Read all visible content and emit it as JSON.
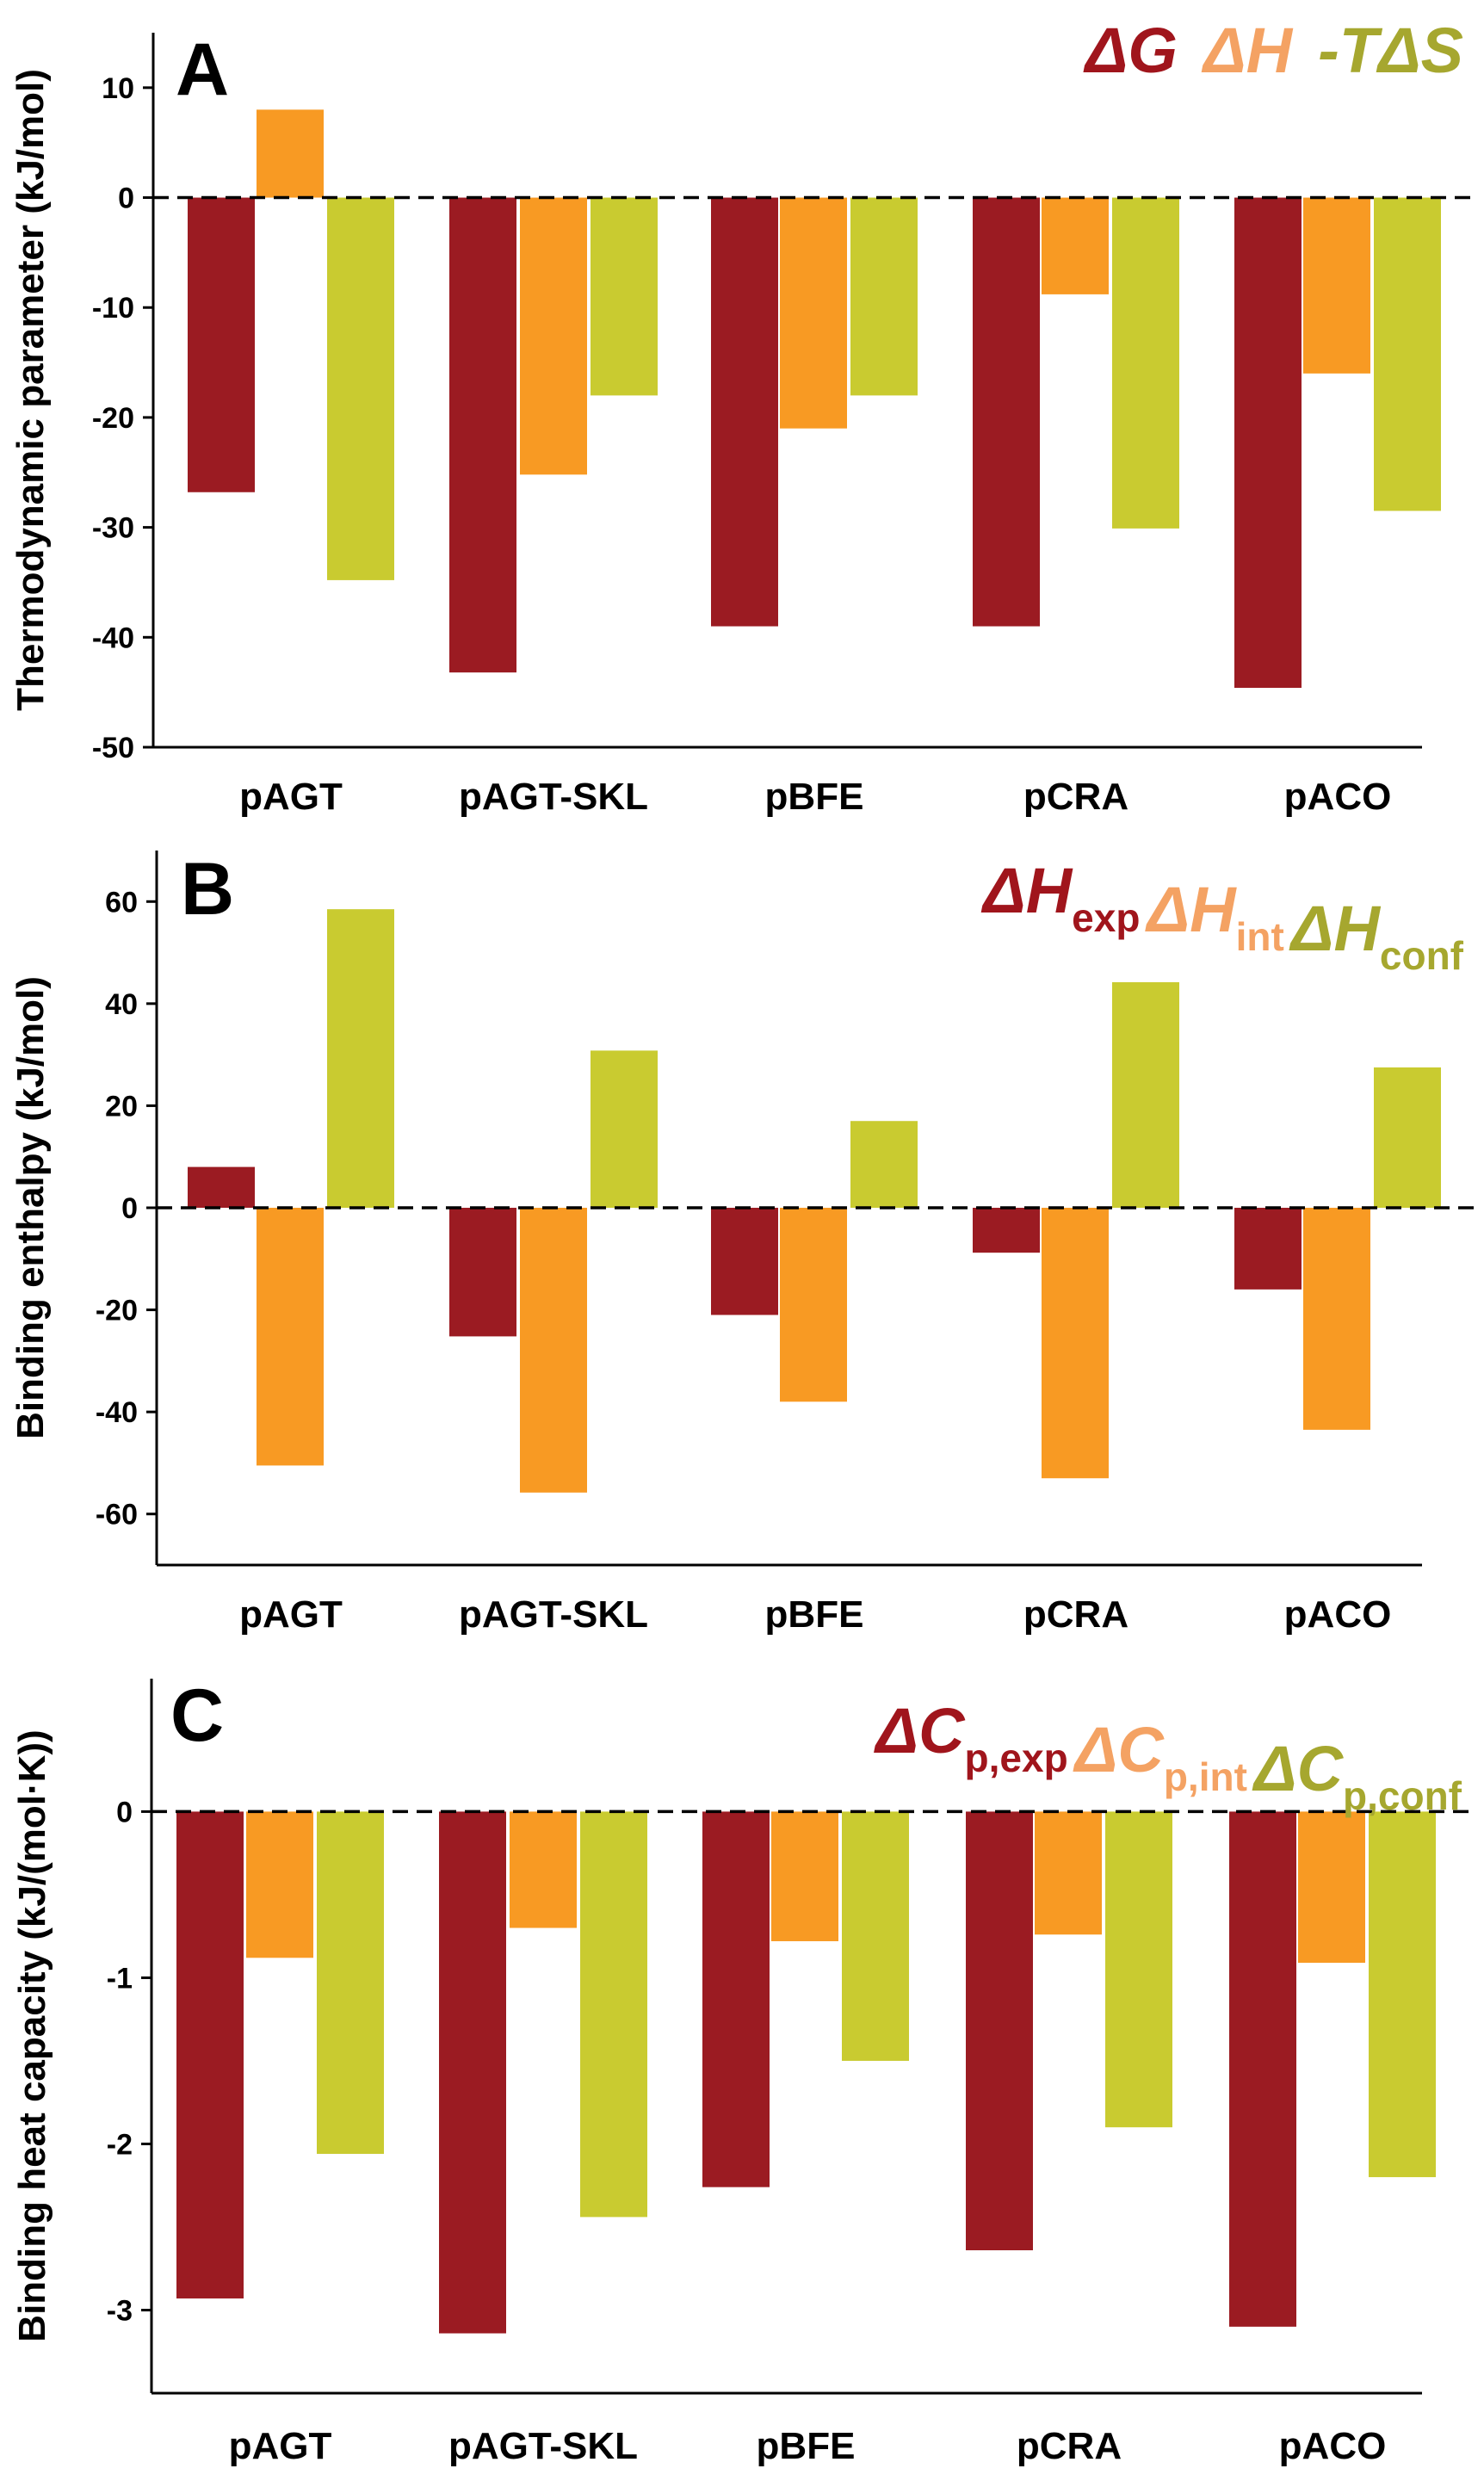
{
  "colors": {
    "series1": "#9B1B22",
    "series2": "#F89A23",
    "series3": "#C9CB30",
    "legend1": "#A0151C",
    "legend2": "#F4A263",
    "legend3": "#A6A72F"
  },
  "chart_data": [
    {
      "type": "bar",
      "panel": "A",
      "ylabel": "Thermodynamic parameter (kJ/mol)",
      "ylim": [
        -50,
        15
      ],
      "yticks": [
        10,
        0,
        -10,
        -20,
        -30,
        -40,
        -50
      ],
      "tick_labels": [
        "10",
        "0",
        "-10",
        "-20",
        "-30",
        "-40",
        "-50"
      ],
      "categories": [
        "pAGT",
        "pAGT-SKL",
        "pBFE",
        "pCRA",
        "pACO"
      ],
      "legend": [
        {
          "main": "ΔG",
          "sub": ""
        },
        {
          "main": "ΔH",
          "sub": ""
        },
        {
          "main": "-TΔS",
          "sub": ""
        }
      ],
      "series": [
        {
          "name": "ΔG",
          "values": [
            -26.8,
            -43.2,
            -39.0,
            -39.0,
            -44.6
          ]
        },
        {
          "name": "ΔH",
          "values": [
            8.0,
            -25.2,
            -21.0,
            -8.8,
            -16.0
          ]
        },
        {
          "name": "-TΔS",
          "values": [
            -34.8,
            -18.0,
            -18.0,
            -30.1,
            -28.5
          ]
        }
      ]
    },
    {
      "type": "bar",
      "panel": "B",
      "ylabel": "Binding enthalpy (kJ/mol)",
      "ylim": [
        -70,
        70
      ],
      "yticks": [
        60,
        40,
        20,
        0,
        -20,
        -40,
        -60
      ],
      "tick_labels": [
        "60",
        "40",
        "20",
        "0",
        "-20",
        "-40",
        "-60"
      ],
      "categories": [
        "pAGT",
        "pAGT-SKL",
        "pBFE",
        "pCRA",
        "pACO"
      ],
      "legend": [
        {
          "main": "ΔH",
          "sub": "exp"
        },
        {
          "main": "ΔH",
          "sub": "int"
        },
        {
          "main": "ΔH",
          "sub": "conf"
        }
      ],
      "series": [
        {
          "name": "ΔH_exp",
          "values": [
            8.0,
            -25.2,
            -21.0,
            -8.8,
            -16.0
          ]
        },
        {
          "name": "ΔH_int",
          "values": [
            -50.5,
            -55.8,
            -38.0,
            -53.0,
            -43.5
          ]
        },
        {
          "name": "ΔH_conf",
          "values": [
            58.5,
            30.8,
            17.0,
            44.2,
            27.5
          ]
        }
      ]
    },
    {
      "type": "bar",
      "panel": "C",
      "ylabel": "Binding heat capacity (kJ/(mol·K))",
      "ylim": [
        -3.5,
        0.8
      ],
      "yticks": [
        0,
        -1,
        -2,
        -3
      ],
      "tick_labels": [
        "0",
        "-1",
        "-2",
        "-3"
      ],
      "categories": [
        "pAGT",
        "pAGT-SKL",
        "pBFE",
        "pCRA",
        "pACO"
      ],
      "legend": [
        {
          "main": "ΔC",
          "sub": "p,exp"
        },
        {
          "main": "ΔC",
          "sub": "p,int"
        },
        {
          "main": "ΔC",
          "sub": "p,conf"
        }
      ],
      "series": [
        {
          "name": "ΔC_p,exp",
          "values": [
            -2.93,
            -3.14,
            -2.26,
            -2.64,
            -3.1
          ]
        },
        {
          "name": "ΔC_p,int",
          "values": [
            -0.88,
            -0.7,
            -0.78,
            -0.74,
            -0.91
          ]
        },
        {
          "name": "ΔC_p,conf",
          "values": [
            -2.06,
            -2.44,
            -1.5,
            -1.9,
            -2.2
          ]
        }
      ]
    }
  ]
}
